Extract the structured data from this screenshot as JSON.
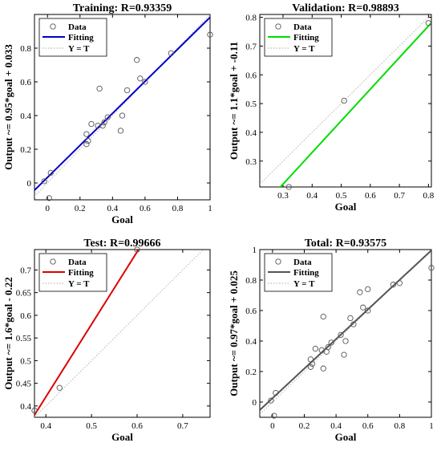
{
  "chart_data": [
    {
      "type": "scatter",
      "title": "Training: R=0.93359",
      "xlabel": "Goal",
      "ylabel": "Output ~= 0.95*goal + 0.033",
      "xlim": [
        -0.08,
        1.0
      ],
      "ylim": [
        -0.1,
        1.0
      ],
      "xticks": [
        0,
        0.2,
        0.4,
        0.6,
        0.8,
        1
      ],
      "yticks": [
        0,
        0.2,
        0.4,
        0.6,
        0.8
      ],
      "xtick_labels": [
        "0",
        "0.2",
        "0.4",
        "0.6",
        "0.8",
        "1"
      ],
      "ytick_labels": [
        "0",
        "0.2",
        "0.4",
        "0.6",
        "0.8"
      ],
      "fit": {
        "slope": 0.95,
        "intercept": 0.033
      },
      "fit_color": "#0000cc",
      "legend": {
        "placement": "top-left",
        "entries": [
          "Data",
          "Fitting",
          "Y = T"
        ]
      },
      "points": [
        {
          "x": -0.02,
          "y": 0.01
        },
        {
          "x": 0.01,
          "y": -0.09
        },
        {
          "x": 0.02,
          "y": 0.06
        },
        {
          "x": 0.24,
          "y": 0.23
        },
        {
          "x": 0.24,
          "y": 0.29
        },
        {
          "x": 0.25,
          "y": 0.25
        },
        {
          "x": 0.27,
          "y": 0.35
        },
        {
          "x": 0.31,
          "y": 0.34
        },
        {
          "x": 0.32,
          "y": 0.56
        },
        {
          "x": 0.34,
          "y": 0.34
        },
        {
          "x": 0.35,
          "y": 0.36
        },
        {
          "x": 0.37,
          "y": 0.39
        },
        {
          "x": 0.45,
          "y": 0.31
        },
        {
          "x": 0.46,
          "y": 0.4
        },
        {
          "x": 0.49,
          "y": 0.55
        },
        {
          "x": 0.55,
          "y": 0.73
        },
        {
          "x": 0.57,
          "y": 0.62
        },
        {
          "x": 0.6,
          "y": 0.6
        },
        {
          "x": 0.76,
          "y": 0.77
        },
        {
          "x": 1.0,
          "y": 0.88
        }
      ]
    },
    {
      "type": "scatter",
      "title": "Validation: R=0.98893",
      "xlabel": "Goal",
      "ylabel": "Output ~= 1.1*goal + -0.11",
      "xlim": [
        0.22,
        0.81
      ],
      "ylim": [
        0.21,
        0.81
      ],
      "xticks": [
        0.3,
        0.4,
        0.5,
        0.6,
        0.7,
        0.8
      ],
      "yticks": [
        0.3,
        0.4,
        0.5,
        0.6,
        0.7,
        0.8
      ],
      "xtick_labels": [
        "0.3",
        "0.4",
        "0.5",
        "0.6",
        "0.7",
        "0.8"
      ],
      "ytick_labels": [
        "0.3",
        "0.4",
        "0.5",
        "0.6",
        "0.7",
        "0.8"
      ],
      "fit": {
        "slope": 1.1,
        "intercept": -0.11
      },
      "fit_color": "#00dd00",
      "legend": {
        "placement": "top-left",
        "entries": [
          "Data",
          "Fitting",
          "Y = T"
        ]
      },
      "points": [
        {
          "x": 0.32,
          "y": 0.21
        },
        {
          "x": 0.51,
          "y": 0.51
        },
        {
          "x": 0.8,
          "y": 0.78
        }
      ]
    },
    {
      "type": "scatter",
      "title": "Test: R=0.99666",
      "xlabel": "Goal",
      "ylabel": "Output ~= 1.6*goal - 0.22",
      "xlim": [
        0.375,
        0.76
      ],
      "ylim": [
        0.375,
        0.745
      ],
      "xticks": [
        0.4,
        0.5,
        0.6,
        0.7
      ],
      "yticks": [
        0.4,
        0.45,
        0.5,
        0.55,
        0.6,
        0.65,
        0.7
      ],
      "xtick_labels": [
        "0.4",
        "0.5",
        "0.6",
        "0.7"
      ],
      "ytick_labels": [
        "0.4",
        "0.45",
        "0.5",
        "0.55",
        "0.6",
        "0.65",
        "0.7"
      ],
      "fit": {
        "slope": 1.6,
        "intercept": -0.22
      },
      "fit_color": "#dd0000",
      "legend": {
        "placement": "top-left",
        "entries": [
          "Data",
          "Fitting",
          "Y = T"
        ]
      },
      "points": [
        {
          "x": 0.375,
          "y": 0.39
        },
        {
          "x": 0.43,
          "y": 0.44
        },
        {
          "x": 0.6,
          "y": 0.745
        }
      ]
    },
    {
      "type": "scatter",
      "title": "Total: R=0.93575",
      "xlabel": "Goal",
      "ylabel": "Output ~= 0.97*goal + 0.025",
      "xlim": [
        -0.08,
        1.0
      ],
      "ylim": [
        -0.1,
        1.0
      ],
      "xticks": [
        0,
        0.2,
        0.4,
        0.6,
        0.8,
        1
      ],
      "yticks": [
        0,
        0.2,
        0.4,
        0.6,
        0.8,
        1
      ],
      "xtick_labels": [
        "0",
        "0.2",
        "0.4",
        "0.6",
        "0.8",
        "1"
      ],
      "ytick_labels": [
        "0",
        "0.2",
        "0.4",
        "0.6",
        "0.8",
        "1"
      ],
      "fit": {
        "slope": 0.97,
        "intercept": 0.025
      },
      "fit_color": "#555555",
      "legend": {
        "placement": "top-left",
        "entries": [
          "Data",
          "Fitting",
          "Y = T"
        ]
      },
      "points": [
        {
          "x": -0.01,
          "y": 0.01
        },
        {
          "x": 0.01,
          "y": -0.09
        },
        {
          "x": 0.02,
          "y": 0.06
        },
        {
          "x": 0.24,
          "y": 0.23
        },
        {
          "x": 0.24,
          "y": 0.28
        },
        {
          "x": 0.25,
          "y": 0.25
        },
        {
          "x": 0.27,
          "y": 0.35
        },
        {
          "x": 0.31,
          "y": 0.34
        },
        {
          "x": 0.32,
          "y": 0.56
        },
        {
          "x": 0.32,
          "y": 0.22
        },
        {
          "x": 0.34,
          "y": 0.33
        },
        {
          "x": 0.35,
          "y": 0.36
        },
        {
          "x": 0.37,
          "y": 0.39
        },
        {
          "x": 0.43,
          "y": 0.44
        },
        {
          "x": 0.45,
          "y": 0.31
        },
        {
          "x": 0.46,
          "y": 0.4
        },
        {
          "x": 0.49,
          "y": 0.55
        },
        {
          "x": 0.51,
          "y": 0.51
        },
        {
          "x": 0.55,
          "y": 0.72
        },
        {
          "x": 0.57,
          "y": 0.62
        },
        {
          "x": 0.6,
          "y": 0.6
        },
        {
          "x": 0.6,
          "y": 0.74
        },
        {
          "x": 0.76,
          "y": 0.77
        },
        {
          "x": 0.8,
          "y": 0.78
        },
        {
          "x": 1.0,
          "y": 0.88
        }
      ]
    }
  ]
}
